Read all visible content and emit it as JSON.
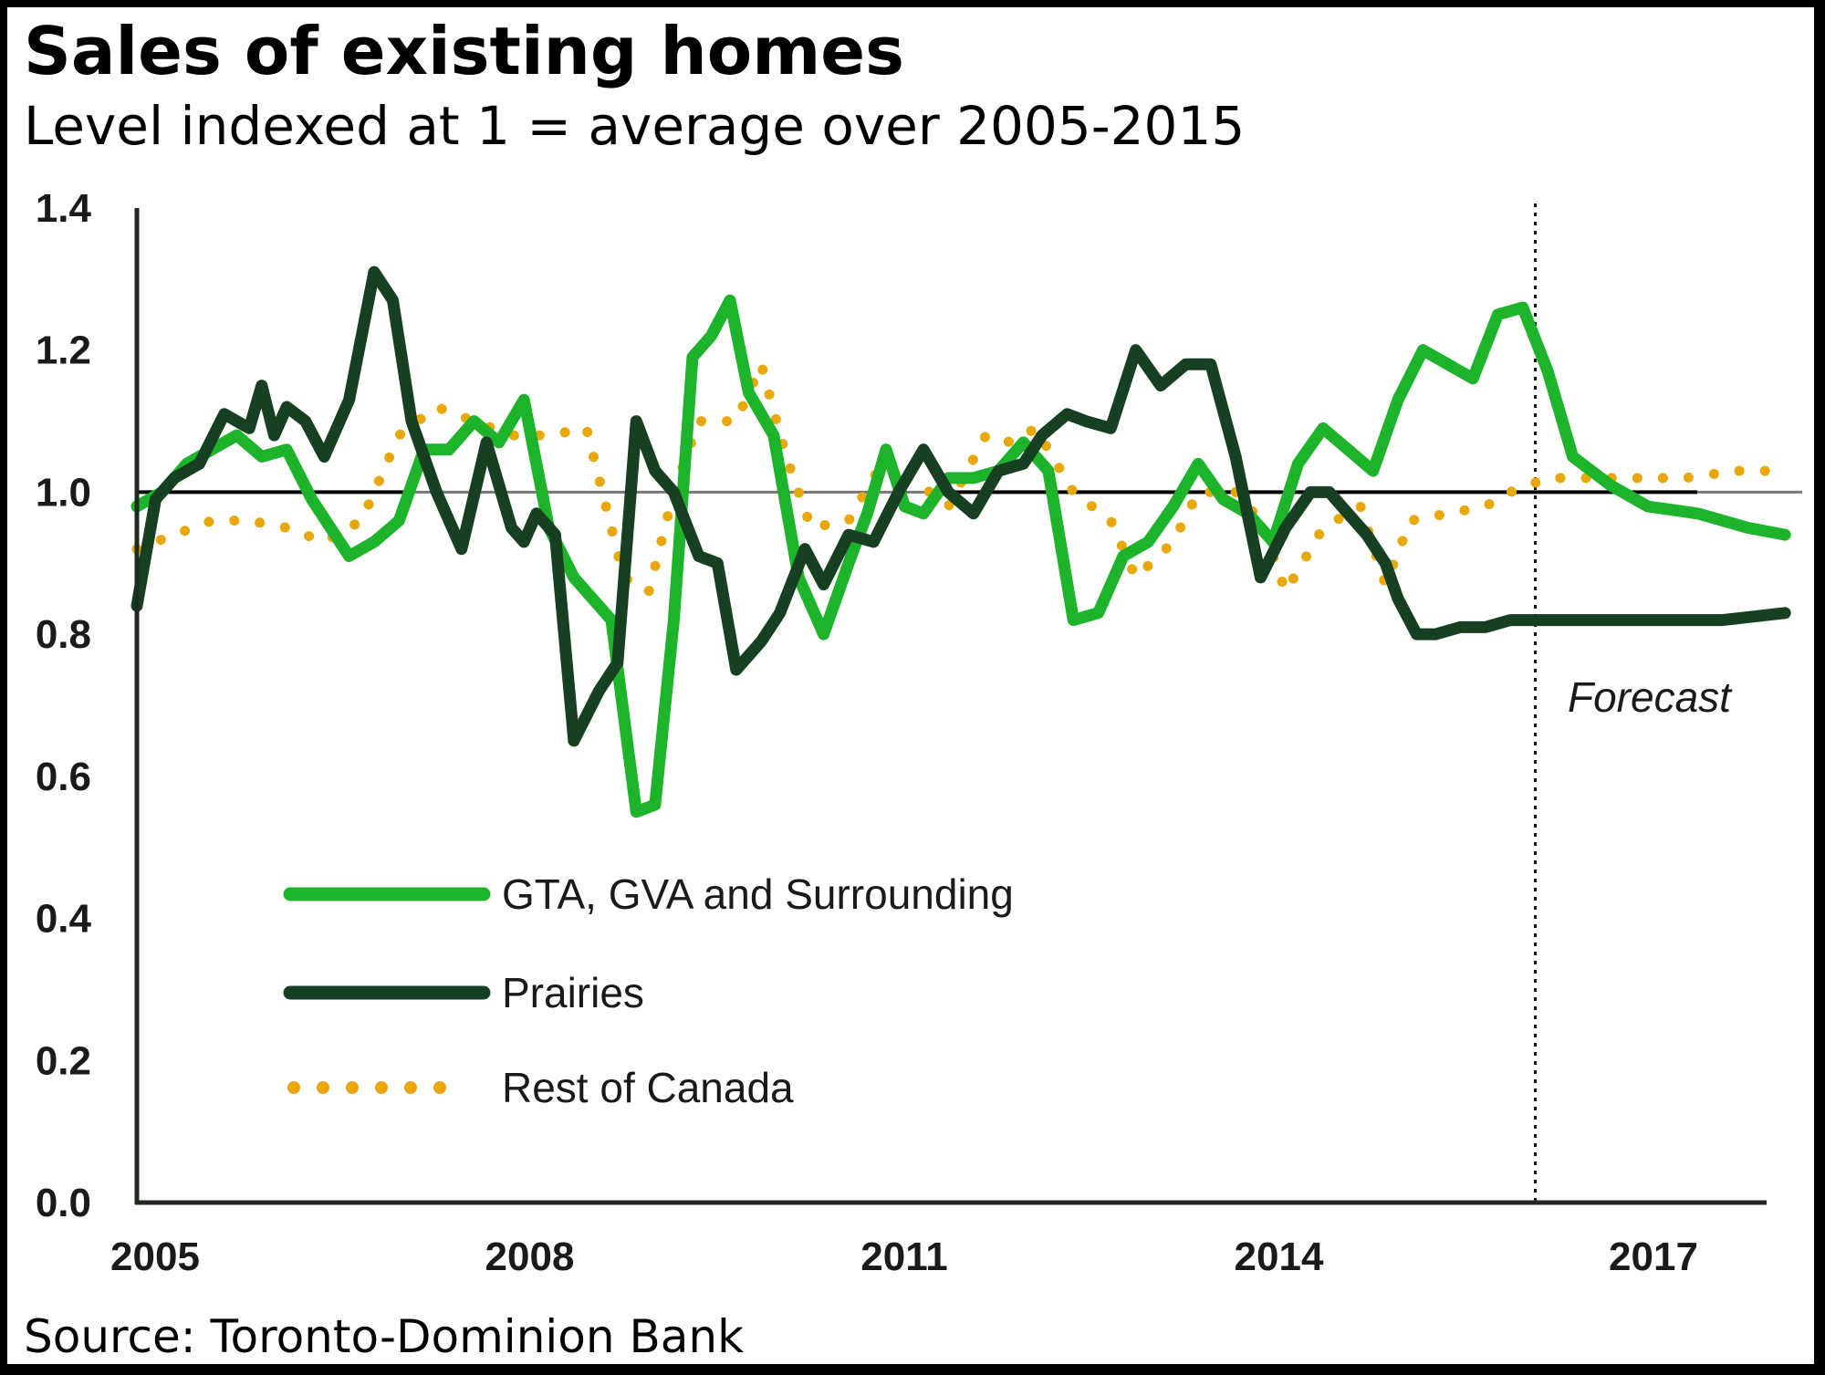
{
  "chart_data": {
    "type": "line",
    "title": "Sales of existing homes",
    "subtitle": "Level indexed at 1 = average over 2005-2015",
    "source": "Source: Toronto-Dominion Bank",
    "xlabel": "",
    "ylabel": "",
    "xlim": [
      2005,
      2018.2
    ],
    "ylim": [
      0.0,
      1.4
    ],
    "x_ticks": [
      2005,
      2008,
      2011,
      2014,
      2017
    ],
    "x_tick_labels": [
      "2005",
      "2008",
      "2011",
      "2014",
      "2017"
    ],
    "y_ticks": [
      0.0,
      0.2,
      0.4,
      0.6,
      0.8,
      1.0,
      1.2,
      1.4
    ],
    "y_tick_labels": [
      "0.0",
      "0.2",
      "0.4",
      "0.6",
      "0.8",
      "1.0",
      "1.2",
      "1.4"
    ],
    "grid": false,
    "reference_line": {
      "y": 1.0
    },
    "forecast_start": 2016.2,
    "forecast_label": "Forecast",
    "legend_position": "bottom-left",
    "series": [
      {
        "name": "GTA, GVA and Surrounding",
        "style": "solid",
        "color": "#1db32a",
        "x": [
          2005.0,
          2005.2,
          2005.4,
          2005.6,
          2005.8,
          2006.0,
          2006.2,
          2006.4,
          2006.7,
          2006.9,
          2007.1,
          2007.3,
          2007.5,
          2007.7,
          2007.9,
          2008.1,
          2008.3,
          2008.5,
          2008.8,
          2009.0,
          2009.15,
          2009.3,
          2009.45,
          2009.6,
          2009.75,
          2009.9,
          2010.1,
          2010.3,
          2010.5,
          2010.7,
          2010.85,
          2011.0,
          2011.15,
          2011.3,
          2011.5,
          2011.7,
          2011.9,
          2012.1,
          2012.3,
          2012.5,
          2012.7,
          2012.9,
          2013.1,
          2013.3,
          2013.5,
          2013.7,
          2013.9,
          2014.1,
          2014.3,
          2014.5,
          2014.7,
          2014.9,
          2015.1,
          2015.3,
          2015.5,
          2015.7,
          2015.9,
          2016.1,
          2016.3,
          2016.5,
          2016.8,
          2017.1,
          2017.5,
          2017.9,
          2018.2
        ],
        "values": [
          0.98,
          1.0,
          1.04,
          1.06,
          1.08,
          1.05,
          1.06,
          0.99,
          0.91,
          0.93,
          0.96,
          1.06,
          1.06,
          1.1,
          1.07,
          1.13,
          0.95,
          0.88,
          0.82,
          0.55,
          0.56,
          0.82,
          1.19,
          1.22,
          1.27,
          1.14,
          1.08,
          0.88,
          0.8,
          0.9,
          0.97,
          1.06,
          0.98,
          0.97,
          1.02,
          1.02,
          1.03,
          1.07,
          1.03,
          0.82,
          0.83,
          0.91,
          0.93,
          0.98,
          1.04,
          0.99,
          0.97,
          0.93,
          1.04,
          1.09,
          1.06,
          1.03,
          1.13,
          1.2,
          1.18,
          1.16,
          1.25,
          1.26,
          1.17,
          1.05,
          1.01,
          0.98,
          0.97,
          0.95,
          0.94
        ]
      },
      {
        "name": "Prairies",
        "style": "solid",
        "color": "#173f22",
        "x": [
          2005.0,
          2005.15,
          2005.3,
          2005.5,
          2005.7,
          2005.9,
          2006.0,
          2006.1,
          2006.2,
          2006.35,
          2006.5,
          2006.7,
          2006.9,
          2007.05,
          2007.2,
          2007.4,
          2007.6,
          2007.8,
          2008.0,
          2008.1,
          2008.2,
          2008.35,
          2008.5,
          2008.7,
          2008.85,
          2009.0,
          2009.15,
          2009.3,
          2009.5,
          2009.65,
          2009.8,
          2010.0,
          2010.15,
          2010.35,
          2010.5,
          2010.7,
          2010.9,
          2011.1,
          2011.3,
          2011.5,
          2011.7,
          2011.9,
          2012.1,
          2012.25,
          2012.45,
          2012.6,
          2012.8,
          2013.0,
          2013.2,
          2013.4,
          2013.6,
          2013.8,
          2014.0,
          2014.2,
          2014.4,
          2014.55,
          2014.7,
          2014.85,
          2015.0,
          2015.1,
          2015.25,
          2015.4,
          2015.6,
          2015.8,
          2016.0,
          2016.3,
          2016.5,
          2016.8,
          2017.2,
          2017.7,
          2018.2
        ],
        "values": [
          0.84,
          0.99,
          1.02,
          1.04,
          1.11,
          1.09,
          1.15,
          1.08,
          1.12,
          1.1,
          1.05,
          1.13,
          1.31,
          1.27,
          1.1,
          1.0,
          0.92,
          1.07,
          0.95,
          0.93,
          0.97,
          0.94,
          0.65,
          0.72,
          0.76,
          1.1,
          1.03,
          1.0,
          0.91,
          0.9,
          0.75,
          0.79,
          0.83,
          0.92,
          0.87,
          0.94,
          0.93,
          1.0,
          1.06,
          1.0,
          0.97,
          1.03,
          1.04,
          1.08,
          1.11,
          1.1,
          1.09,
          1.2,
          1.15,
          1.18,
          1.18,
          1.05,
          0.88,
          0.95,
          1.0,
          1.0,
          0.97,
          0.94,
          0.9,
          0.85,
          0.8,
          0.8,
          0.81,
          0.81,
          0.82,
          0.82,
          0.82,
          0.82,
          0.82,
          0.82,
          0.83
        ]
      },
      {
        "name": "Rest of Canada",
        "style": "dotted",
        "color": "#e8a80c",
        "x": [
          2005.0,
          2005.3,
          2005.6,
          2005.9,
          2006.2,
          2006.5,
          2006.8,
          2007.1,
          2007.4,
          2007.7,
          2008.0,
          2008.3,
          2008.6,
          2008.9,
          2009.1,
          2009.3,
          2009.5,
          2009.8,
          2010.0,
          2010.2,
          2010.4,
          2010.7,
          2011.0,
          2011.2,
          2011.5,
          2011.8,
          2012.0,
          2012.2,
          2012.5,
          2012.8,
          2013.0,
          2013.3,
          2013.5,
          2013.8,
          2014.0,
          2014.2,
          2014.5,
          2014.8,
          2015.0,
          2015.2,
          2015.5,
          2015.8,
          2016.0,
          2016.3,
          2016.6,
          2017.0,
          2017.4,
          2017.8,
          2018.2
        ],
        "values": [
          0.92,
          0.94,
          0.96,
          0.96,
          0.95,
          0.93,
          0.96,
          1.08,
          1.12,
          1.1,
          1.08,
          1.08,
          1.09,
          0.88,
          0.86,
          1.0,
          1.1,
          1.1,
          1.18,
          1.05,
          0.95,
          0.96,
          1.05,
          1.02,
          0.98,
          1.08,
          1.07,
          1.09,
          1.0,
          0.96,
          0.88,
          0.93,
          1.0,
          1.0,
          0.96,
          0.86,
          0.95,
          0.98,
          0.87,
          0.96,
          0.97,
          0.98,
          1.0,
          1.02,
          1.02,
          1.02,
          1.02,
          1.03,
          1.03
        ]
      }
    ]
  }
}
